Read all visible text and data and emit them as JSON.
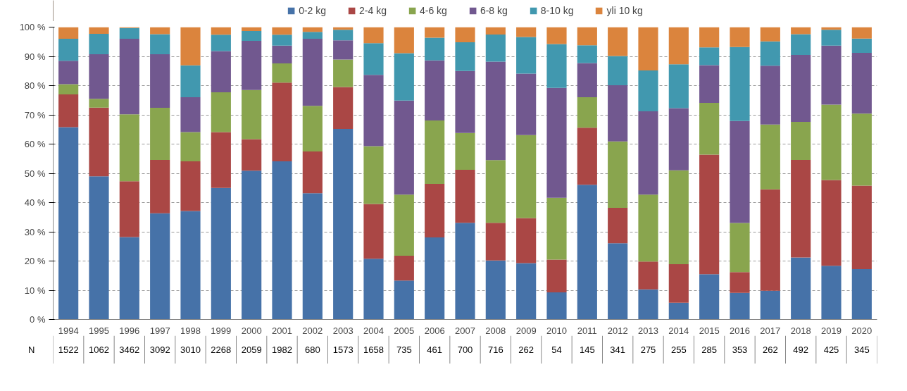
{
  "chart_data": {
    "type": "bar",
    "stacked": true,
    "categories": [
      "1994",
      "1995",
      "1996",
      "1997",
      "1998",
      "1999",
      "2000",
      "2001",
      "2002",
      "2003",
      "2004",
      "2005",
      "2006",
      "2007",
      "2008",
      "2009",
      "2010",
      "2011",
      "2012",
      "2013",
      "2014",
      "2015",
      "2016",
      "2017",
      "2018",
      "2019",
      "2020"
    ],
    "series": [
      {
        "name": "0-2 kg",
        "color": "#4672a8",
        "values": [
          65.8,
          49,
          28.2,
          36.3,
          37.1,
          45,
          50.9,
          54.1,
          43.2,
          65.2,
          20.8,
          13.3,
          28.1,
          33.1,
          20.2,
          19.3,
          9.3,
          46.1,
          26.1,
          10.3,
          5.7,
          15.5,
          9.1,
          9.8,
          21.2,
          18.4,
          17.2
        ]
      },
      {
        "name": "2-4 kg",
        "color": "#aa4745",
        "values": [
          11.2,
          23.5,
          19.1,
          18.3,
          17,
          19.1,
          10.8,
          26.9,
          14.3,
          14.3,
          18.7,
          8.5,
          18.3,
          18.1,
          12.9,
          15.4,
          11.2,
          19.5,
          12.1,
          9.5,
          13.2,
          40.9,
          7.1,
          34.7,
          33.4,
          29.3,
          28.6
        ]
      },
      {
        "name": "4-6 kg",
        "color": "#89a54e",
        "values": [
          3.5,
          3,
          22.9,
          17.8,
          10,
          13.6,
          16.8,
          6.6,
          15.6,
          9.4,
          19.8,
          20.9,
          21.7,
          12.6,
          21.4,
          28.4,
          21.1,
          10.4,
          22.7,
          22.9,
          32.1,
          17.7,
          16.8,
          22.2,
          13,
          25.8,
          24.6
        ]
      },
      {
        "name": "6-8 kg",
        "color": "#71588f",
        "values": [
          8,
          15.2,
          25.8,
          18.3,
          11.9,
          14.1,
          16.8,
          6.1,
          22.9,
          6.6,
          24.4,
          32.2,
          20.5,
          21.2,
          33.7,
          21,
          37.6,
          11.7,
          19.2,
          28.5,
          21.3,
          12.9,
          34.9,
          20.1,
          22.9,
          20.2,
          20.8
        ]
      },
      {
        "name": "8-10 kg",
        "color": "#4198af",
        "values": [
          7.5,
          7,
          3.7,
          6.9,
          10.9,
          5.6,
          3.4,
          3.7,
          2.4,
          3.6,
          10.8,
          16.2,
          7.8,
          9.8,
          9.3,
          12.5,
          15,
          6.1,
          10,
          14,
          15,
          6.1,
          25.3,
          8.3,
          7.1,
          5.4,
          4.9
        ]
      },
      {
        "name": "yli 10 kg",
        "color": "#db843d",
        "values": [
          4,
          2.3,
          0.3,
          2.4,
          13.1,
          2.6,
          1.3,
          2.6,
          1.6,
          0.9,
          5.5,
          8.9,
          3.6,
          5.2,
          2.5,
          3.4,
          5.8,
          6.2,
          9.9,
          14.8,
          12.7,
          6.9,
          6.8,
          4.9,
          2.4,
          0.9,
          3.9
        ]
      }
    ],
    "ylim": [
      0,
      100
    ],
    "yticks": [
      {
        "value": 0,
        "label": "0 %"
      },
      {
        "value": 10,
        "label": "10 %"
      },
      {
        "value": 20,
        "label": "20 %"
      },
      {
        "value": 30,
        "label": "30 %"
      },
      {
        "value": 40,
        "label": "40 %"
      },
      {
        "value": 50,
        "label": "50 %"
      },
      {
        "value": 60,
        "label": "60 %"
      },
      {
        "value": 70,
        "label": "70 %"
      },
      {
        "value": 80,
        "label": "80 %"
      },
      {
        "value": 90,
        "label": "90 %"
      },
      {
        "value": 100,
        "label": "100 %"
      }
    ],
    "grid": "y",
    "legend": "top",
    "annotations": [
      "N",
      "1522",
      "1062",
      "3462",
      "3092",
      "3010",
      "2268",
      "2059",
      "1982",
      "680",
      "1573",
      "1658",
      "735",
      "461",
      "700",
      "716",
      "262",
      "54",
      "145",
      "341",
      "275",
      "255",
      "285",
      "353",
      "262",
      "492",
      "425",
      "345"
    ]
  }
}
